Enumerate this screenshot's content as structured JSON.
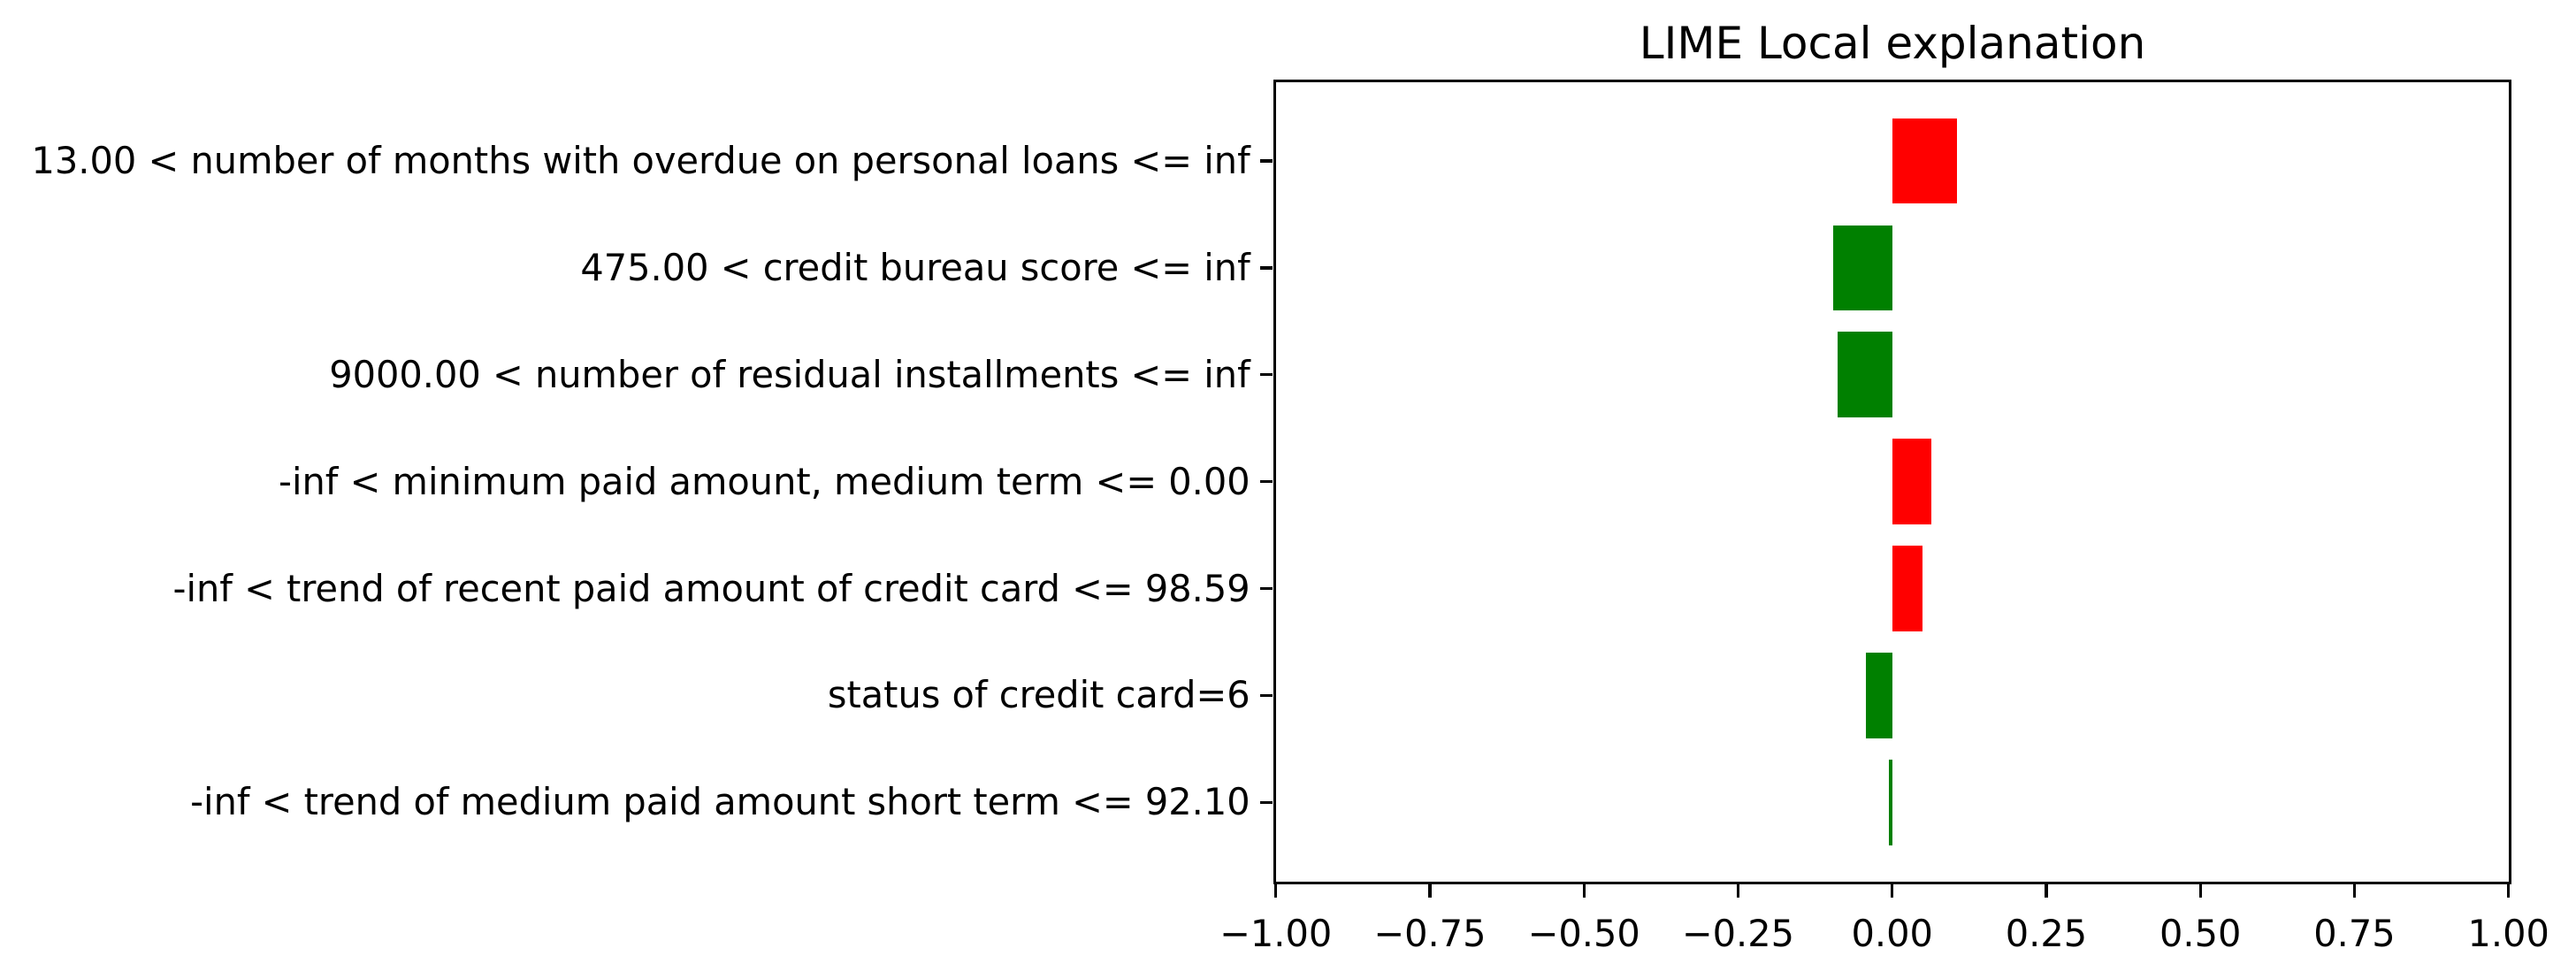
{
  "chart_data": {
    "type": "bar",
    "orientation": "horizontal",
    "title": "LIME Local explanation",
    "categories": [
      "13.00 < number of months with overdue on personal loans <= inf",
      "475.00 < credit bureau score <= inf",
      "9000.00 < number of residual installments <= inf",
      "-inf < minimum paid amount, medium term <= 0.00",
      "-inf < trend of recent paid amount of credit card <= 98.59",
      "status of credit card=6",
      "-inf < trend of medium paid amount short term <= 92.10"
    ],
    "values": [
      0.105,
      -0.096,
      -0.089,
      0.063,
      0.049,
      -0.043,
      -0.005
    ],
    "xlabel": "",
    "ylabel": "",
    "xlim": [
      -1.0,
      1.0
    ],
    "x_ticks": [
      -1.0,
      -0.75,
      -0.5,
      -0.25,
      0.0,
      0.25,
      0.5,
      0.75,
      1.0
    ],
    "x_tick_labels": [
      "−1.00",
      "−0.75",
      "−0.50",
      "−0.25",
      "0.00",
      "0.25",
      "0.50",
      "0.75",
      "1.00"
    ],
    "positive_color": "#ff0000",
    "negative_color": "#008000",
    "axis_color": "#000000",
    "background_color": "#ffffff",
    "grid": false,
    "legend": "none",
    "bar_height_fraction": 0.8
  }
}
